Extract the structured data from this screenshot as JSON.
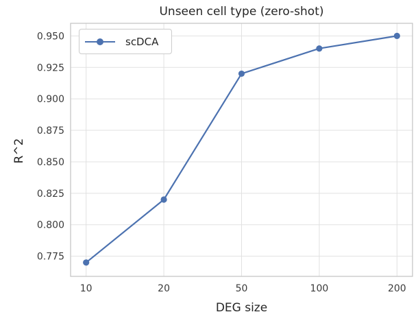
{
  "chart_data": {
    "type": "line",
    "title": "Unseen cell type (zero-shot)",
    "xlabel": "DEG size",
    "ylabel": "R^2",
    "categories": [
      "10",
      "20",
      "50",
      "100",
      "200"
    ],
    "series": [
      {
        "name": "scDCA",
        "values": [
          0.77,
          0.82,
          0.92,
          0.94,
          0.95
        ],
        "color": "#4C72B0",
        "marker": "circle"
      }
    ],
    "yticks": [
      0.775,
      0.8,
      0.825,
      0.85,
      0.875,
      0.9,
      0.925,
      0.95
    ],
    "ytick_labels": [
      "0.775",
      "0.800",
      "0.825",
      "0.850",
      "0.875",
      "0.900",
      "0.925",
      "0.950"
    ],
    "ylim": [
      0.759,
      0.96
    ],
    "grid": true,
    "legend_position": "upper left",
    "colors": {
      "line": "#4C72B0",
      "grid": "#e1e1e1",
      "spine": "#c6c6c6",
      "text": "#3a3a3a",
      "title_text": "#262626",
      "background": "#ffffff"
    }
  }
}
